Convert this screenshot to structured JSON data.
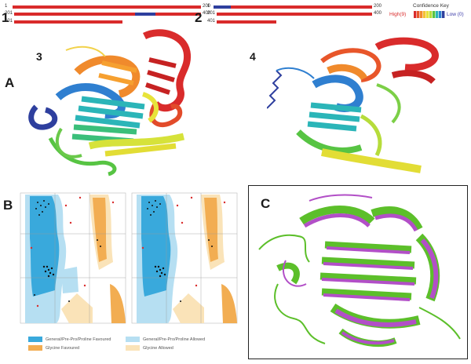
{
  "panels": {
    "a_label": "A",
    "b_label": "B",
    "c_label": "C",
    "sub3_label": "3",
    "sub4_label": "4"
  },
  "sequence_maps": [
    {
      "label": "1",
      "rows": [
        {
          "start": "1",
          "end": "200"
        },
        {
          "start": "201",
          "end": "400"
        },
        {
          "start": "401",
          "end": ""
        }
      ]
    },
    {
      "label": "2",
      "rows": [
        {
          "start": "1",
          "end": "200"
        },
        {
          "start": "201",
          "end": "400"
        },
        {
          "start": "401",
          "end": ""
        }
      ]
    }
  ],
  "confidence_key": {
    "title": "Confidence Key",
    "high": "High(9)",
    "low": "Low (0)",
    "colors": [
      "#d92b2b",
      "#e8562a",
      "#f08a2c",
      "#f4c233",
      "#e7e33a",
      "#b6dc3b",
      "#57c443",
      "#2bb5b8",
      "#2f7fd0",
      "#2e3f9e"
    ]
  },
  "ramachandran_legend": {
    "items": [
      {
        "label": "General/Pre-Pro/Proline Favoured",
        "color": "#39a9dc"
      },
      {
        "label": "General/Pre-Pro/Proline Allowed",
        "color": "#b6dff2"
      },
      {
        "label": "Glycine Favoured",
        "color": "#f2ad52"
      },
      {
        "label": "Glycine Allowed",
        "color": "#fae3b8"
      }
    ]
  },
  "colors": {
    "bar_red": "#d92b2b",
    "bar_blue": "#2e3f9e",
    "overlay_green": "#5cbf2a",
    "overlay_purple": "#b24fc7"
  }
}
